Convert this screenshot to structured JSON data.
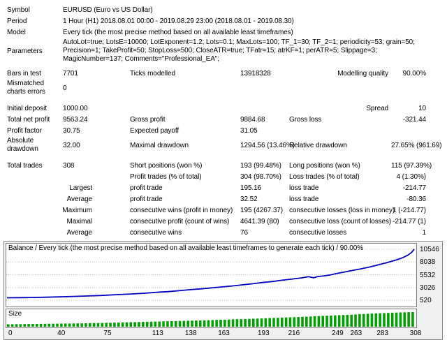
{
  "report": {
    "rows": [
      {
        "key": "symbol",
        "cells": [
          {
            "t": "Symbol"
          },
          {
            "t": "EURUSD (Euro vs US Dollar)",
            "s": 5
          }
        ]
      },
      {
        "key": "period",
        "cells": [
          {
            "t": "Period"
          },
          {
            "t": "1 Hour (H1) 2018.08.01 00:00 - 2019.08.29 23:00 (2018.08.01 - 2019.08.30)",
            "s": 5
          }
        ]
      },
      {
        "key": "model",
        "cells": [
          {
            "t": "Model"
          },
          {
            "t": "Every tick (the most precise method based on all available least timeframes)",
            "s": 5
          }
        ]
      },
      {
        "key": "parameters",
        "cells": [
          {
            "t": "Parameters"
          },
          {
            "t": "AutoLot=true; LotsE=10000; LotExponent=1.2; Lots=0.1; MaxLots=100; TF_1=30; TF_2=1; periodicity=53; grain=50; Precision=1; TakeProfit=50; StopLoss=500; CloseATR=true; TFatr=15; atrKF=1; perATR=5; Slippage=3; MagicNumber=137; Comments=\"Professional_EA\";",
            "s": 5,
            "w": true
          }
        ]
      },
      {
        "key": "gap1",
        "spacer": 5
      },
      {
        "key": "bars-in-test",
        "cells": [
          {
            "t": "Bars in test"
          },
          {
            "t": "7701"
          },
          {
            "t": "Ticks modelled"
          },
          {
            "t": "13918328"
          },
          {
            "t": "Modelling quality",
            "a": "r"
          },
          {
            "t": "90.00%",
            "a": "r"
          }
        ]
      },
      {
        "key": "mismatched-errors",
        "cells": [
          {
            "t": "Mismatched charts errors",
            "w": true
          },
          {
            "t": "0"
          },
          {
            "t": "",
            "s": 4
          }
        ]
      },
      {
        "key": "gap2",
        "spacer": 8
      },
      {
        "key": "initial-deposit",
        "cells": [
          {
            "t": "Initial deposit"
          },
          {
            "t": "1000.00"
          },
          {
            "t": ""
          },
          {
            "t": ""
          },
          {
            "t": "Spread",
            "a": "r"
          },
          {
            "t": "10",
            "a": "r"
          }
        ]
      },
      {
        "key": "total-net-profit",
        "cells": [
          {
            "t": "Total net profit"
          },
          {
            "t": "9563.24"
          },
          {
            "t": "Gross profit"
          },
          {
            "t": "9884.68"
          },
          {
            "t": "Gross loss"
          },
          {
            "t": "-321.44",
            "a": "r"
          }
        ]
      },
      {
        "key": "profit-factor",
        "cells": [
          {
            "t": "Profit factor"
          },
          {
            "t": "30.75"
          },
          {
            "t": "Expected payoff"
          },
          {
            "t": "31.05"
          },
          {
            "t": ""
          },
          {
            "t": ""
          }
        ]
      },
      {
        "key": "absolute-drawdown",
        "cells": [
          {
            "t": "Absolute drawdown",
            "w": true
          },
          {
            "t": "32.00"
          },
          {
            "t": "Maximal drawdown"
          },
          {
            "t": "1294.56 (13.46%)"
          },
          {
            "t": "Relative drawdown"
          },
          {
            "t": "27.65% (961.69)",
            "a": "r"
          }
        ]
      },
      {
        "key": "gap3",
        "spacer": 8
      },
      {
        "key": "total-trades",
        "cells": [
          {
            "t": "Total trades"
          },
          {
            "t": "308"
          },
          {
            "t": "Short positions (won %)"
          },
          {
            "t": "193 (99.48%)"
          },
          {
            "t": "Long positions (won %)"
          },
          {
            "t": "115 (97.39%)",
            "a": "r"
          }
        ]
      },
      {
        "key": "profit-trades",
        "cells": [
          {
            "t": "",
            "s": 2
          },
          {
            "t": "Profit trades (% of total)"
          },
          {
            "t": "304 (98.70%)"
          },
          {
            "t": "Loss trades (% of total)"
          },
          {
            "t": "4 (1.30%)",
            "a": "r"
          }
        ]
      },
      {
        "key": "largest",
        "cells": [
          {
            "t": "Largest",
            "s": 2,
            "a": "sub"
          },
          {
            "t": "profit trade"
          },
          {
            "t": "195.16"
          },
          {
            "t": "loss trade"
          },
          {
            "t": "-214.77",
            "a": "r"
          }
        ]
      },
      {
        "key": "average-trade",
        "cells": [
          {
            "t": "Average",
            "s": 2,
            "a": "sub"
          },
          {
            "t": "profit trade"
          },
          {
            "t": "32.52"
          },
          {
            "t": "loss trade"
          },
          {
            "t": "-80.36",
            "a": "r"
          }
        ]
      },
      {
        "key": "maximum-consecutive",
        "cells": [
          {
            "t": "Maximum",
            "s": 2,
            "a": "sub"
          },
          {
            "t": "consecutive wins (profit in money)"
          },
          {
            "t": "195 (4267.37)"
          },
          {
            "t": "consecutive losses (loss in money)"
          },
          {
            "t": "1 (-214.77)",
            "a": "r"
          }
        ]
      },
      {
        "key": "maximal-consecutive",
        "cells": [
          {
            "t": "Maximal",
            "s": 2,
            "a": "sub"
          },
          {
            "t": "consecutive profit (count of wins)"
          },
          {
            "t": "4641.39 (80)"
          },
          {
            "t": "consecutive loss (count of losses)"
          },
          {
            "t": "-214.77 (1)",
            "a": "r"
          }
        ]
      },
      {
        "key": "average-consecutive",
        "cells": [
          {
            "t": "Average",
            "s": 2,
            "a": "sub"
          },
          {
            "t": "consecutive wins"
          },
          {
            "t": "76"
          },
          {
            "t": "consecutive losses"
          },
          {
            "t": "1",
            "a": "r"
          }
        ]
      }
    ]
  },
  "chart_data": [
    {
      "type": "line",
      "name": "balance",
      "title": "Balance / Every tick (the most precise method based on all available least timeframes to generate each tick) / 90.00%",
      "x": [
        0,
        10,
        20,
        30,
        40,
        50,
        60,
        70,
        75,
        85,
        95,
        105,
        113,
        122,
        130,
        138,
        147,
        155,
        163,
        171,
        178,
        186,
        193,
        201,
        208,
        216,
        223,
        228,
        232,
        235,
        240,
        245,
        249,
        256,
        263,
        268,
        273,
        278,
        283,
        287,
        291,
        295,
        299,
        303,
        306,
        308
      ],
      "y": [
        1000,
        1025,
        1060,
        1110,
        1175,
        1255,
        1345,
        1440,
        1510,
        1630,
        1760,
        1910,
        2070,
        2210,
        2390,
        2580,
        2760,
        2950,
        3150,
        3340,
        3540,
        3760,
        3990,
        4200,
        4450,
        4700,
        4920,
        5150,
        4935,
        5180,
        5320,
        5520,
        5750,
        6100,
        6450,
        6700,
        6980,
        7280,
        7620,
        7880,
        8170,
        8480,
        8850,
        9350,
        9900,
        10563
      ],
      "x_range": [
        0,
        308
      ],
      "x_ticks": [
        0,
        40,
        75,
        113,
        138,
        163,
        193,
        216,
        249,
        263,
        283,
        308
      ],
      "y_ticks": [
        10546,
        8038,
        5532,
        3026,
        520
      ],
      "line_color": "#0000c0",
      "grid_color": "#bdbdbd"
    },
    {
      "type": "bar",
      "name": "size",
      "label": "Size",
      "bar_color": "#00a000",
      "bar_count": 100,
      "values": [
        0.08,
        0.09,
        0.1,
        0.11,
        0.12,
        0.13,
        0.14,
        0.15,
        0.17,
        0.18,
        0.2,
        0.22,
        0.24,
        0.26,
        0.28,
        0.3,
        0.32,
        0.34,
        0.36,
        0.38,
        0.41,
        0.43,
        0.46,
        0.48,
        0.51,
        0.54,
        0.57,
        0.6,
        0.63,
        0.66,
        0.7,
        0.73,
        0.77,
        0.8,
        0.84,
        0.88,
        0.92,
        0.95,
        0.98,
        1.0
      ]
    }
  ]
}
